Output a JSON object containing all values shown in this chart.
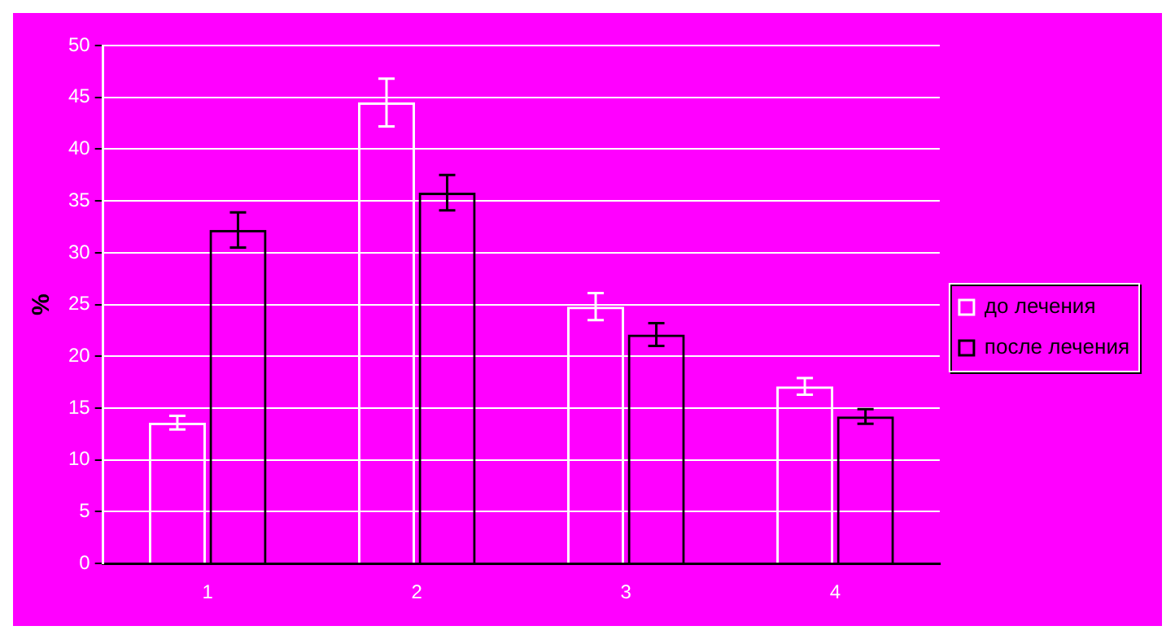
{
  "chart_data": {
    "type": "bar",
    "ylabel": "%",
    "categories": [
      "1",
      "2",
      "3",
      "4"
    ],
    "series": [
      {
        "name": "до лечения",
        "color": "#ffffff",
        "values": [
          13.6,
          44.5,
          24.8,
          17.1
        ],
        "errors": [
          0.65,
          2.3,
          1.3,
          0.8
        ]
      },
      {
        "name": "после лечения",
        "color": "#000000",
        "values": [
          32.2,
          35.8,
          22.1,
          14.2
        ],
        "errors": [
          1.7,
          1.7,
          1.1,
          0.7
        ]
      }
    ],
    "ylim": [
      0,
      50
    ],
    "yticks": [
      0,
      5,
      10,
      15,
      20,
      25,
      30,
      35,
      40,
      45,
      50
    ],
    "grid": "y",
    "legend": "right"
  }
}
